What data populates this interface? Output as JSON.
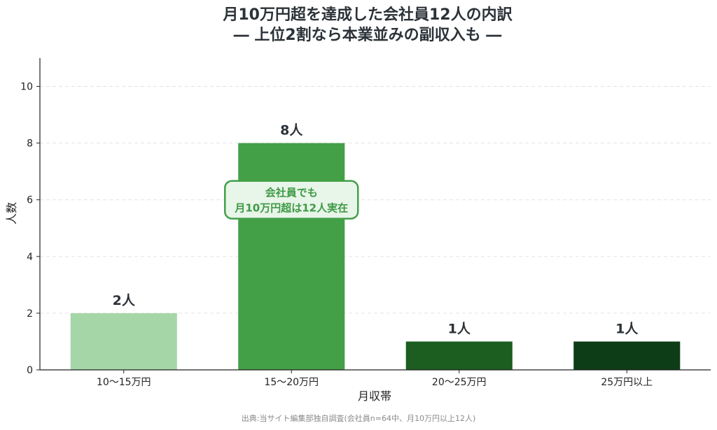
{
  "chart_data": {
    "type": "bar",
    "title": "月10万円超を達成した会社員12人の内訳",
    "subtitle": "― 上位2割なら本業並みの副収入も ―",
    "categories": [
      "10〜15万円",
      "15〜20万円",
      "20〜25万円",
      "25万円以上"
    ],
    "values": [
      2,
      8,
      1,
      1
    ],
    "data_labels": [
      "2人",
      "8人",
      "1人",
      "1人"
    ],
    "colors": [
      "#a5d6a7",
      "#43a047",
      "#1b5e20",
      "#0d3d16"
    ],
    "xlabel": "月収帯",
    "ylabel": "人数",
    "ylim": [
      0,
      11
    ],
    "yticks": [
      0,
      2,
      4,
      6,
      8,
      10
    ],
    "grid": "horizontal-dashed",
    "annotation": {
      "lines": [
        "会社員でも",
        "月10万円超は12人実在"
      ],
      "category": "15〜20万円",
      "value": 6,
      "border_color": "#43a047",
      "fill_color": "#e8f5e9"
    },
    "source": "出典:当サイト編集部独自調査(会社員n=64中、月10万円以上12人)"
  }
}
